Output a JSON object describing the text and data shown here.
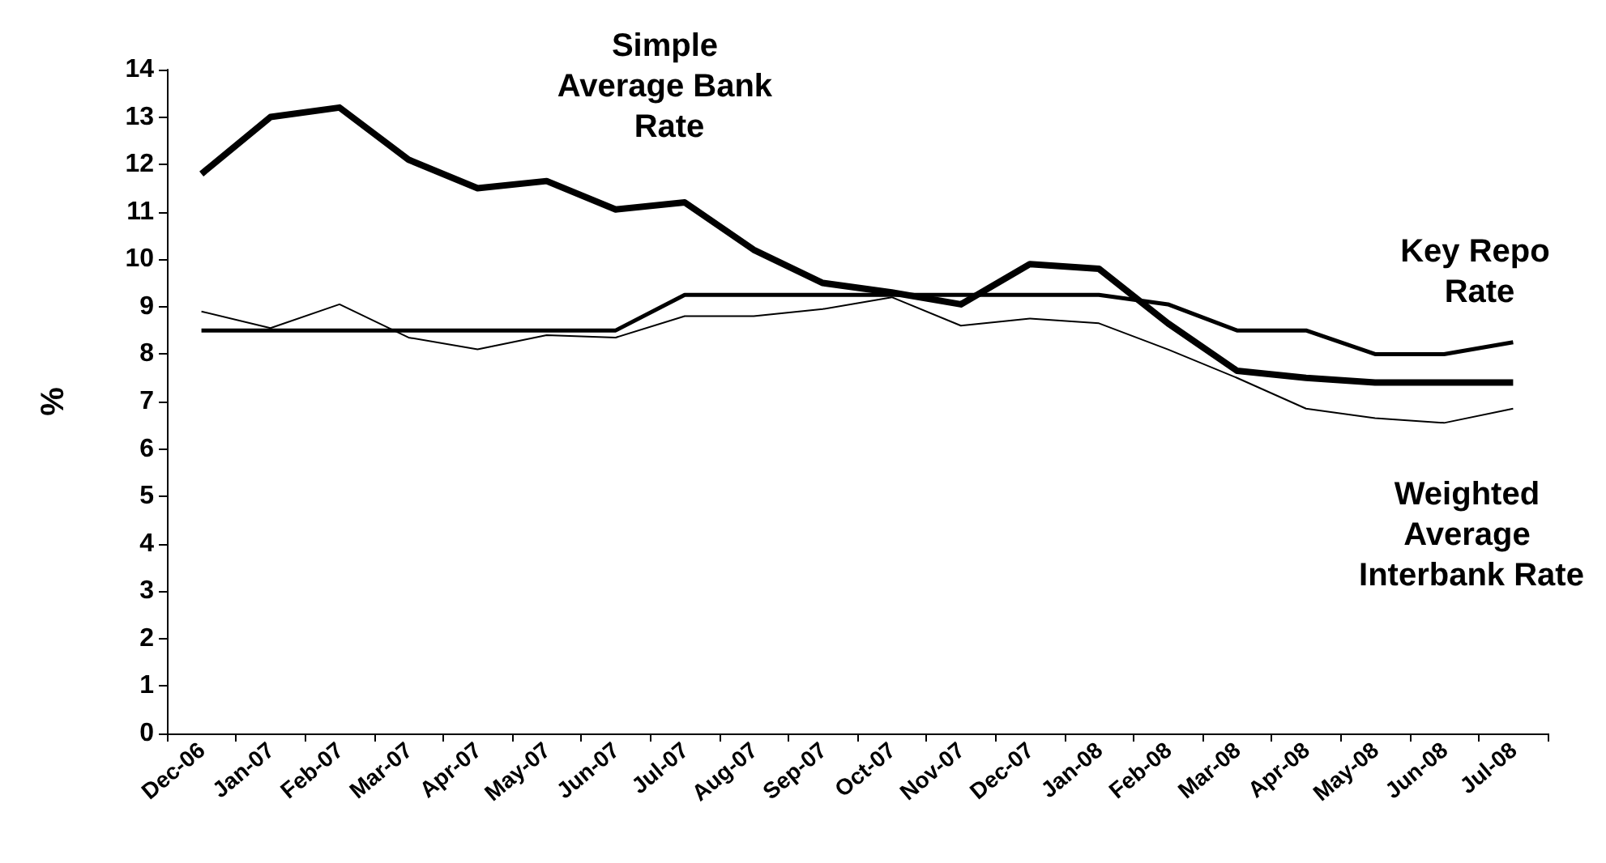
{
  "chart_data": {
    "type": "line",
    "ylabel": "%",
    "categories": [
      "Dec-06",
      "Jan-07",
      "Feb-07",
      "Mar-07",
      "Apr-07",
      "May-07",
      "Jun-07",
      "Jul-07",
      "Aug-07",
      "Sep-07",
      "Oct-07",
      "Nov-07",
      "Dec-07",
      "Jan-08",
      "Feb-08",
      "Mar-08",
      "Apr-08",
      "May-08",
      "Jun-08",
      "Jul-08"
    ],
    "series": [
      {
        "name": "Simple Average Bank Rate",
        "color": "#000000",
        "values": [
          11.8,
          13.0,
          13.2,
          12.1,
          11.5,
          11.65,
          11.05,
          11.2,
          10.2,
          9.5,
          9.3,
          9.05,
          9.9,
          9.8,
          8.65,
          7.65,
          7.5,
          7.4,
          7.4,
          7.4
        ]
      },
      {
        "name": "Key Repo Rate",
        "color": "#000000",
        "values": [
          8.5,
          8.5,
          8.5,
          8.5,
          8.5,
          8.5,
          8.5,
          9.25,
          9.25,
          9.25,
          9.25,
          9.25,
          9.25,
          9.25,
          9.05,
          8.5,
          8.5,
          8.0,
          8.0,
          8.25
        ]
      },
      {
        "name": "Weighted Average Interbank Rate",
        "color": "#000000",
        "values": [
          8.9,
          8.55,
          9.05,
          8.35,
          8.1,
          8.4,
          8.35,
          8.8,
          8.8,
          8.95,
          9.2,
          8.6,
          8.75,
          8.65,
          8.1,
          7.5,
          6.85,
          6.65,
          6.55,
          6.85
        ]
      }
    ],
    "ylim": [
      0,
      14
    ],
    "yticks": [
      0,
      1,
      2,
      3,
      4,
      5,
      6,
      7,
      8,
      9,
      10,
      11,
      12,
      13,
      14
    ],
    "grid": false,
    "legend": false
  }
}
